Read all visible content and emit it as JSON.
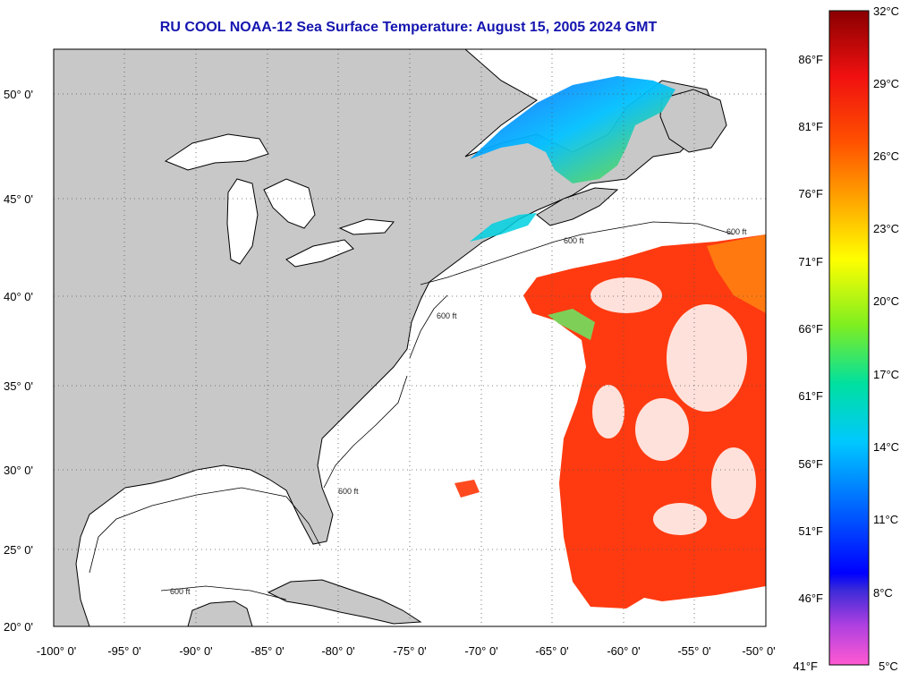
{
  "title": "RU COOL  NOAA-12  Sea Surface Temperature:  August 15, 2005 2024 GMT",
  "lat_labels": [
    "50° 0'",
    "45° 0'",
    "40° 0'",
    "35° 0'",
    "30° 0'",
    "25° 0'",
    "20° 0'"
  ],
  "lon_labels": [
    "-100° 0'",
    "-95° 0'",
    "-90° 0'",
    "-85° 0'",
    "-80° 0'",
    "-75° 0'",
    "-70° 0'",
    "-65° 0'",
    "-60° 0'",
    "-55° 0'",
    "-50° 0'"
  ],
  "contour_label": "600 ft",
  "colorbar": {
    "fahrenheit": [
      "86°F",
      "81°F",
      "76°F",
      "71°F",
      "66°F",
      "61°F",
      "56°F",
      "51°F",
      "46°F",
      "41°F"
    ],
    "celsius": [
      "32°C",
      "29°C",
      "26°C",
      "23°C",
      "20°C",
      "17°C",
      "14°C",
      "11°C",
      "8°C",
      "5°C"
    ]
  },
  "colors": {
    "land": "#c8c8c8",
    "ocean_no_data": "#ffffff",
    "title": "#1515b0",
    "grid": "#555555"
  }
}
